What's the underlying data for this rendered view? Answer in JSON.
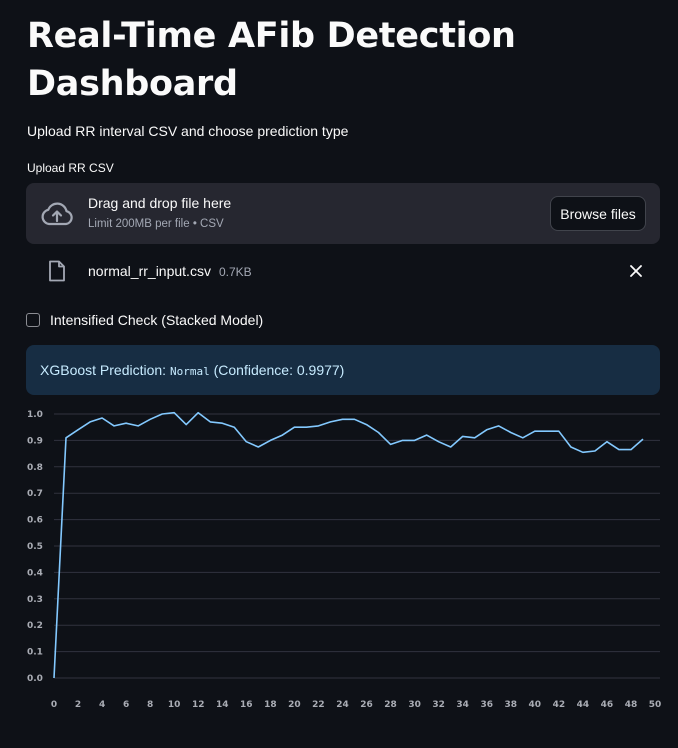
{
  "header": {
    "title": "Real-Time AFib Detection Dashboard",
    "subtitle": "Upload RR interval CSV and choose prediction type"
  },
  "uploader": {
    "label": "Upload RR CSV",
    "drop_text": "Drag and drop file here",
    "hint": "Limit 200MB per file • CSV",
    "browse_label": "Browse files",
    "icon": "cloud-upload-icon"
  },
  "file": {
    "name": "normal_rr_input.csv",
    "size": "0.7KB",
    "icon": "file-icon"
  },
  "checkbox": {
    "label": "Intensified Check (Stacked Model)",
    "checked": false
  },
  "alert": {
    "prefix": "XGBoost Prediction: ",
    "prediction": "Normal",
    "suffix": " (Confidence: 0.9977)"
  },
  "colors": {
    "background": "#0e1117",
    "line": "#83c9ff",
    "alert_bg": "#172d43",
    "alert_text": "#c7ebff"
  },
  "chart_data": {
    "type": "line",
    "x": [
      0,
      1,
      2,
      3,
      4,
      5,
      6,
      7,
      8,
      9,
      10,
      11,
      12,
      13,
      14,
      15,
      16,
      17,
      18,
      19,
      20,
      21,
      22,
      23,
      24,
      25,
      26,
      27,
      28,
      29,
      30,
      31,
      32,
      33,
      34,
      35,
      36,
      37,
      38,
      39,
      40,
      41,
      42,
      43,
      44,
      45,
      46,
      47,
      48,
      49
    ],
    "values": [
      0.0,
      0.91,
      0.94,
      0.97,
      0.985,
      0.955,
      0.965,
      0.955,
      0.98,
      1.0,
      1.005,
      0.96,
      1.005,
      0.97,
      0.965,
      0.95,
      0.895,
      0.875,
      0.9,
      0.92,
      0.95,
      0.95,
      0.955,
      0.97,
      0.98,
      0.98,
      0.96,
      0.93,
      0.885,
      0.9,
      0.9,
      0.92,
      0.895,
      0.875,
      0.915,
      0.91,
      0.94,
      0.955,
      0.93,
      0.91,
      0.935,
      0.935,
      0.935,
      0.875,
      0.855,
      0.86,
      0.895,
      0.865,
      0.865,
      0.905
    ],
    "xlim": [
      0,
      50
    ],
    "ylim": [
      0,
      1.0
    ],
    "x_ticks": [
      0,
      2,
      4,
      6,
      8,
      10,
      12,
      14,
      16,
      18,
      20,
      22,
      24,
      26,
      28,
      30,
      32,
      34,
      36,
      38,
      40,
      42,
      44,
      46,
      48,
      50
    ],
    "y_ticks": [
      0.0,
      0.1,
      0.2,
      0.3,
      0.4,
      0.5,
      0.6,
      0.7,
      0.8,
      0.9,
      1.0
    ],
    "y_tick_labels": [
      "0.0",
      "0.1",
      "0.2",
      "0.3",
      "0.4",
      "0.5",
      "0.6",
      "0.7",
      "0.8",
      "0.9",
      "1.0"
    ],
    "grid": true
  }
}
